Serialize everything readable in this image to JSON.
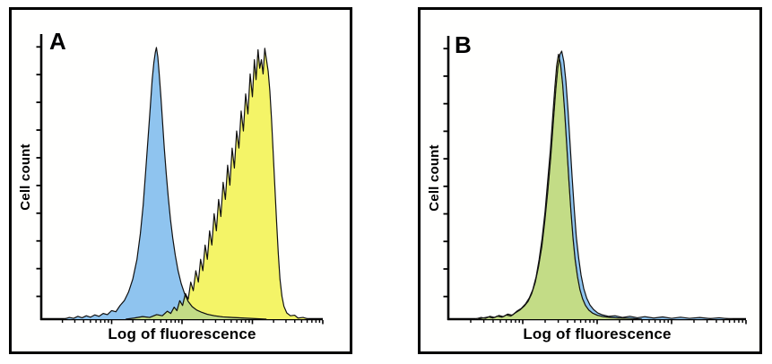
{
  "style": {
    "background": "#ffffff",
    "panel_border": "#000000",
    "axis_color": "#000000",
    "outline_color": "#101010"
  },
  "chart_data": [
    {
      "type": "area",
      "panel_label": "A",
      "xlabel": "Log of fluorescence",
      "ylabel": "Cell count",
      "x_axis": {
        "scale": "log10",
        "decades": 4,
        "tick_labels": "none"
      },
      "y_axis": {
        "scale": "linear",
        "tick_count": 10,
        "tick_labels": "none",
        "range_fraction": [
          0,
          1
        ]
      },
      "legend": "none",
      "description": "Two well-separated cell populations: narrow blue peak near one third of the log axis, broad jagged yellow peak near three quarters; small yellow-green overlap strip at the baseline between them.",
      "overlap_fill": "#C3DC86",
      "overlap_edge": "#8a9648",
      "series": [
        {
          "name": "population-blue",
          "fill": "#8FC4EF",
          "points": [
            [
              0.08,
              0
            ],
            [
              0.1,
              0.006
            ],
            [
              0.115,
              0.003
            ],
            [
              0.13,
              0.01
            ],
            [
              0.145,
              0.005
            ],
            [
              0.16,
              0.012
            ],
            [
              0.175,
              0.007
            ],
            [
              0.19,
              0.015
            ],
            [
              0.205,
              0.01
            ],
            [
              0.22,
              0.02
            ],
            [
              0.235,
              0.016
            ],
            [
              0.25,
              0.03
            ],
            [
              0.265,
              0.026
            ],
            [
              0.28,
              0.048
            ],
            [
              0.295,
              0.065
            ],
            [
              0.31,
              0.095
            ],
            [
              0.325,
              0.14
            ],
            [
              0.34,
              0.21
            ],
            [
              0.352,
              0.3
            ],
            [
              0.362,
              0.4
            ],
            [
              0.371,
              0.52
            ],
            [
              0.379,
              0.63
            ],
            [
              0.387,
              0.74
            ],
            [
              0.394,
              0.84
            ],
            [
              0.4,
              0.9
            ],
            [
              0.405,
              0.935
            ],
            [
              0.409,
              0.953
            ],
            [
              0.414,
              0.92
            ],
            [
              0.419,
              0.86
            ],
            [
              0.425,
              0.78
            ],
            [
              0.431,
              0.69
            ],
            [
              0.437,
              0.6
            ],
            [
              0.444,
              0.51
            ],
            [
              0.451,
              0.43
            ],
            [
              0.459,
              0.35
            ],
            [
              0.467,
              0.285
            ],
            [
              0.476,
              0.225
            ],
            [
              0.486,
              0.17
            ],
            [
              0.497,
              0.125
            ],
            [
              0.509,
              0.09
            ],
            [
              0.522,
              0.062
            ],
            [
              0.536,
              0.044
            ],
            [
              0.552,
              0.032
            ],
            [
              0.57,
              0.024
            ],
            [
              0.59,
              0.017
            ],
            [
              0.615,
              0.012
            ],
            [
              0.645,
              0.008
            ],
            [
              0.68,
              0.006
            ],
            [
              0.72,
              0.004
            ],
            [
              0.76,
              0.002
            ],
            [
              0.8,
              0
            ]
          ]
        },
        {
          "name": "population-yellow",
          "fill": "#F4F467",
          "points": [
            [
              0.3,
              0
            ],
            [
              0.33,
              0.004
            ],
            [
              0.36,
              0.009
            ],
            [
              0.385,
              0.006
            ],
            [
              0.41,
              0.016
            ],
            [
              0.43,
              0.012
            ],
            [
              0.448,
              0.028
            ],
            [
              0.46,
              0.02
            ],
            [
              0.472,
              0.042
            ],
            [
              0.482,
              0.03
            ],
            [
              0.492,
              0.065
            ],
            [
              0.502,
              0.048
            ],
            [
              0.512,
              0.09
            ],
            [
              0.522,
              0.07
            ],
            [
              0.531,
              0.13
            ],
            [
              0.54,
              0.1
            ],
            [
              0.549,
              0.17
            ],
            [
              0.558,
              0.13
            ],
            [
              0.566,
              0.21
            ],
            [
              0.574,
              0.17
            ],
            [
              0.582,
              0.26
            ],
            [
              0.59,
              0.21
            ],
            [
              0.598,
              0.31
            ],
            [
              0.606,
              0.26
            ],
            [
              0.614,
              0.37
            ],
            [
              0.622,
              0.31
            ],
            [
              0.63,
              0.42
            ],
            [
              0.638,
              0.36
            ],
            [
              0.646,
              0.48
            ],
            [
              0.654,
              0.42
            ],
            [
              0.662,
              0.54
            ],
            [
              0.67,
              0.47
            ],
            [
              0.678,
              0.6
            ],
            [
              0.686,
              0.53
            ],
            [
              0.694,
              0.66
            ],
            [
              0.702,
              0.6
            ],
            [
              0.71,
              0.73
            ],
            [
              0.718,
              0.66
            ],
            [
              0.726,
              0.79
            ],
            [
              0.734,
              0.72
            ],
            [
              0.742,
              0.86
            ],
            [
              0.75,
              0.78
            ],
            [
              0.757,
              0.91
            ],
            [
              0.763,
              0.84
            ],
            [
              0.77,
              0.945
            ],
            [
              0.776,
              0.88
            ],
            [
              0.782,
              0.91
            ],
            [
              0.788,
              0.86
            ],
            [
              0.794,
              0.95
            ],
            [
              0.8,
              0.91
            ],
            [
              0.806,
              0.87
            ],
            [
              0.812,
              0.8
            ],
            [
              0.818,
              0.7
            ],
            [
              0.824,
              0.58
            ],
            [
              0.83,
              0.46
            ],
            [
              0.836,
              0.34
            ],
            [
              0.842,
              0.23
            ],
            [
              0.848,
              0.14
            ],
            [
              0.855,
              0.08
            ],
            [
              0.862,
              0.045
            ],
            [
              0.872,
              0.022
            ],
            [
              0.885,
              0.012
            ],
            [
              0.9,
              0.014
            ],
            [
              0.912,
              0.004
            ],
            [
              0.93,
              0.006
            ],
            [
              0.95,
              0
            ]
          ]
        }
      ]
    },
    {
      "type": "area",
      "panel_label": "B",
      "xlabel": "Log of fluorescence",
      "ylabel": "Cell count",
      "x_axis": {
        "scale": "log10",
        "decades": 4,
        "tick_labels": "none"
      },
      "y_axis": {
        "scale": "linear",
        "tick_count": 10,
        "tick_labels": "none",
        "range_fraction": [
          0,
          1
        ]
      },
      "legend": "none",
      "description": "Blue and yellow populations almost completely overlapping in a single narrow peak; overlap renders yellow-green with a thin yellow sliver on the left flank and a thin blue sliver on the right flank; noisy baseline tail to the right.",
      "overlap_fill": "#C3DC86",
      "overlap_edge": "#8a9648",
      "series": [
        {
          "name": "population-blue",
          "fill": "#8FC4EF",
          "points": [
            [
              0.1,
              0
            ],
            [
              0.12,
              0.005
            ],
            [
              0.135,
              0.008
            ],
            [
              0.15,
              0.004
            ],
            [
              0.165,
              0.011
            ],
            [
              0.18,
              0.007
            ],
            [
              0.195,
              0.015
            ],
            [
              0.21,
              0.011
            ],
            [
              0.225,
              0.022
            ],
            [
              0.24,
              0.032
            ],
            [
              0.255,
              0.046
            ],
            [
              0.268,
              0.063
            ],
            [
              0.28,
              0.09
            ],
            [
              0.292,
              0.13
            ],
            [
              0.303,
              0.185
            ],
            [
              0.314,
              0.255
            ],
            [
              0.324,
              0.345
            ],
            [
              0.334,
              0.45
            ],
            [
              0.344,
              0.57
            ],
            [
              0.353,
              0.7
            ],
            [
              0.361,
              0.81
            ],
            [
              0.368,
              0.89
            ],
            [
              0.375,
              0.935
            ],
            [
              0.381,
              0.946
            ],
            [
              0.388,
              0.91
            ],
            [
              0.395,
              0.84
            ],
            [
              0.402,
              0.74
            ],
            [
              0.409,
              0.62
            ],
            [
              0.416,
              0.5
            ],
            [
              0.423,
              0.39
            ],
            [
              0.43,
              0.29
            ],
            [
              0.438,
              0.215
            ],
            [
              0.446,
              0.155
            ],
            [
              0.455,
              0.108
            ],
            [
              0.465,
              0.074
            ],
            [
              0.476,
              0.05
            ],
            [
              0.488,
              0.034
            ],
            [
              0.502,
              0.022
            ],
            [
              0.518,
              0.015
            ],
            [
              0.538,
              0.01
            ],
            [
              0.56,
              0.012
            ],
            [
              0.585,
              0.006
            ],
            [
              0.61,
              0.01
            ],
            [
              0.635,
              0.005
            ],
            [
              0.66,
              0.009
            ],
            [
              0.69,
              0.004
            ],
            [
              0.72,
              0.008
            ],
            [
              0.75,
              0.003
            ],
            [
              0.78,
              0.007
            ],
            [
              0.81,
              0.003
            ],
            [
              0.845,
              0.006
            ],
            [
              0.88,
              0.002
            ],
            [
              0.91,
              0.005
            ],
            [
              0.935,
              0.002
            ],
            [
              0.955,
              0
            ]
          ]
        },
        {
          "name": "population-yellow",
          "fill": "#F4F467",
          "points": [
            [
              0.09,
              0
            ],
            [
              0.11,
              0.006
            ],
            [
              0.125,
              0.003
            ],
            [
              0.14,
              0.01
            ],
            [
              0.155,
              0.006
            ],
            [
              0.17,
              0.013
            ],
            [
              0.185,
              0.009
            ],
            [
              0.2,
              0.018
            ],
            [
              0.215,
              0.014
            ],
            [
              0.23,
              0.028
            ],
            [
              0.245,
              0.038
            ],
            [
              0.26,
              0.055
            ],
            [
              0.272,
              0.075
            ],
            [
              0.284,
              0.105
            ],
            [
              0.295,
              0.15
            ],
            [
              0.305,
              0.21
            ],
            [
              0.315,
              0.285
            ],
            [
              0.325,
              0.38
            ],
            [
              0.334,
              0.49
            ],
            [
              0.343,
              0.6
            ],
            [
              0.351,
              0.72
            ],
            [
              0.358,
              0.82
            ],
            [
              0.364,
              0.895
            ],
            [
              0.37,
              0.935
            ],
            [
              0.377,
              0.9
            ],
            [
              0.384,
              0.83
            ],
            [
              0.391,
              0.73
            ],
            [
              0.398,
              0.61
            ],
            [
              0.405,
              0.49
            ],
            [
              0.412,
              0.38
            ],
            [
              0.419,
              0.285
            ],
            [
              0.426,
              0.21
            ],
            [
              0.434,
              0.15
            ],
            [
              0.442,
              0.105
            ],
            [
              0.451,
              0.072
            ],
            [
              0.461,
              0.048
            ],
            [
              0.472,
              0.032
            ],
            [
              0.485,
              0.021
            ],
            [
              0.5,
              0.014
            ],
            [
              0.52,
              0.009
            ],
            [
              0.545,
              0.006
            ],
            [
              0.575,
              0.004
            ],
            [
              0.61,
              0.003
            ],
            [
              0.65,
              0
            ]
          ]
        }
      ]
    }
  ]
}
